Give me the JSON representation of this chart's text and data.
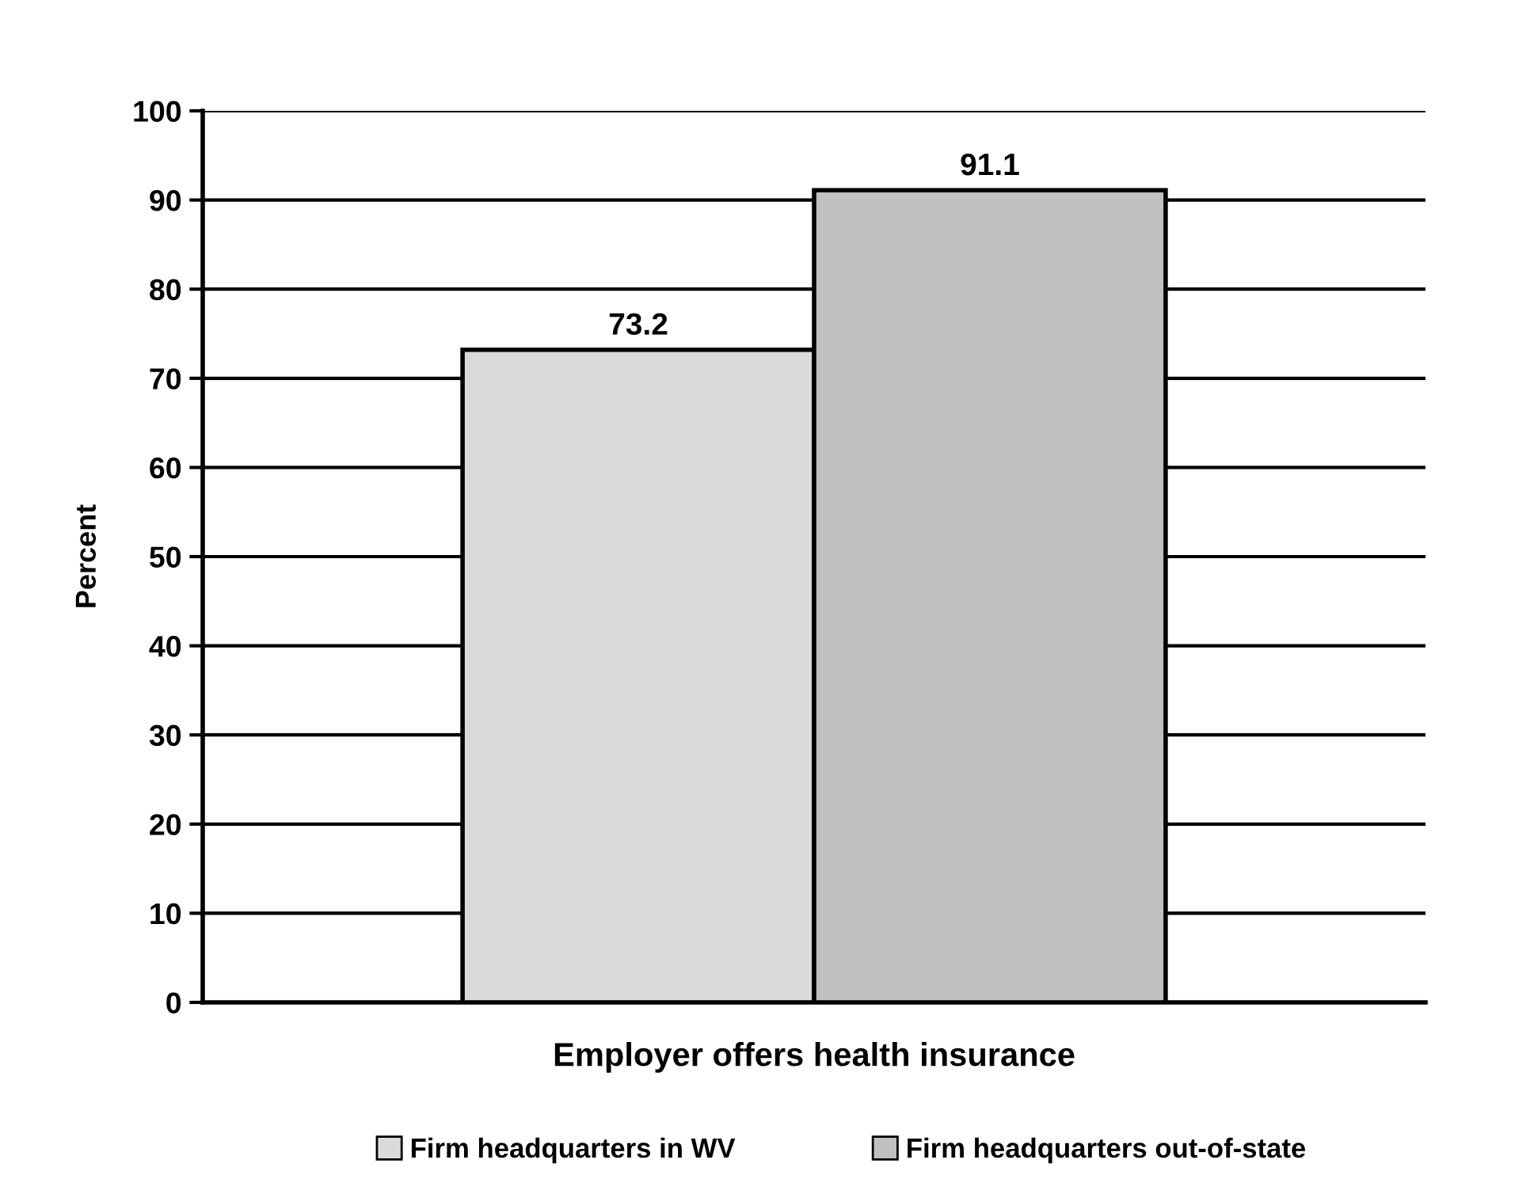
{
  "chart_data": {
    "type": "bar",
    "categories": [
      "Employer offers health insurance"
    ],
    "ylabel": "Percent",
    "series": [
      {
        "name": "Firm headquarters in WV",
        "color": "#dadada",
        "values": [
          73.2
        ]
      },
      {
        "name": "Firm headquarters out-of-state",
        "color": "#c0c0c0",
        "values": [
          91.1
        ]
      }
    ],
    "ylim": [
      0,
      100
    ],
    "yticks": [
      0,
      10,
      20,
      30,
      40,
      50,
      60,
      70,
      80,
      90,
      100
    ],
    "grid": "y",
    "data_labels": true,
    "legend": "bottom"
  }
}
